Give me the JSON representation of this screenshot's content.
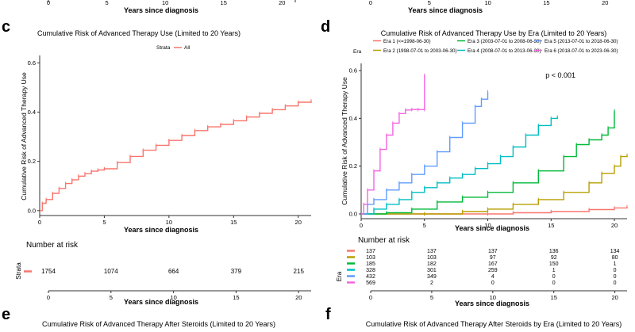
{
  "top_strip": {
    "left": {
      "xlabel": "Years since diagnosis",
      "ticks": [
        "0",
        "5",
        "10",
        "15",
        "20"
      ]
    },
    "right": {
      "xlabel": "Years since diagnosis",
      "ticks": [
        "0",
        "5",
        "10",
        "15",
        "20"
      ]
    }
  },
  "panel_c": {
    "letter": "c",
    "chart_data": {
      "type": "line",
      "title": "Cumulative Risk of Advanced Therapy Use (Limited to 20 Years)",
      "legend_title": "Strata",
      "legend_entries": [
        "All"
      ],
      "xlabel": "Years since diagnosis",
      "ylabel": "Cumulative Risk of Advanced Therapy Use",
      "xlim": [
        0,
        21
      ],
      "ylim": [
        -0.02,
        0.63
      ],
      "xticks": [
        0,
        5,
        10,
        15,
        20
      ],
      "yticks": [
        0.0,
        0.2,
        0.4,
        0.6
      ],
      "ytick_labels": [
        "0.0",
        "0.2",
        "0.4",
        "0.6"
      ],
      "series": [
        {
          "name": "All",
          "color": "#F8766D",
          "points": [
            [
              0,
              0.0
            ],
            [
              0.2,
              0.03
            ],
            [
              0.5,
              0.045
            ],
            [
              1,
              0.07
            ],
            [
              1.5,
              0.09
            ],
            [
              2,
              0.11
            ],
            [
              2.5,
              0.125
            ],
            [
              3,
              0.14
            ],
            [
              3.5,
              0.15
            ],
            [
              4,
              0.16
            ],
            [
              4.5,
              0.165
            ],
            [
              5,
              0.17
            ],
            [
              6,
              0.195
            ],
            [
              7,
              0.22
            ],
            [
              8,
              0.245
            ],
            [
              9,
              0.265
            ],
            [
              10,
              0.285
            ],
            [
              11,
              0.305
            ],
            [
              12,
              0.325
            ],
            [
              13,
              0.34
            ],
            [
              14,
              0.35
            ],
            [
              15,
              0.365
            ],
            [
              16,
              0.38
            ],
            [
              17,
              0.395
            ],
            [
              18,
              0.41
            ],
            [
              19,
              0.425
            ],
            [
              20,
              0.44
            ],
            [
              21,
              0.445
            ]
          ]
        }
      ]
    },
    "risk_table": {
      "title": "Number at risk",
      "ylabel": "Strata",
      "xlabel": "Years since diagnosis",
      "times": [
        0,
        5,
        10,
        15,
        20
      ],
      "tick_labels": [
        "0",
        "5",
        "10",
        "15",
        "20"
      ],
      "rows": [
        {
          "color": "#F8766D",
          "counts": [
            "1754",
            "1074",
            "664",
            "379",
            "215"
          ]
        }
      ]
    }
  },
  "panel_d": {
    "letter": "d",
    "chart_data": {
      "type": "line",
      "title": "Cumulative Risk of Advanced Therapy Use by Era (Limited to 20 Years)",
      "legend_title": "Era",
      "xlabel": "Years since diagnosis",
      "ylabel": "Cumulative Risk of Advanced Therapy Use",
      "annotation": "p < 0.001",
      "xlim": [
        0,
        21
      ],
      "ylim": [
        -0.02,
        0.63
      ],
      "xticks": [
        0,
        5,
        10,
        15,
        20
      ],
      "yticks": [
        0.0,
        0.2,
        0.4,
        0.6
      ],
      "ytick_labels": [
        "0.0",
        "0.2",
        "0.4",
        "0.6"
      ],
      "series": [
        {
          "name": "Era 1 (<=1998-06-30)",
          "color": "#F8766D",
          "points": [
            [
              0,
              0
            ],
            [
              5,
              0
            ],
            [
              10,
              0
            ],
            [
              12,
              0.005
            ],
            [
              15,
              0.01
            ],
            [
              18,
              0.018
            ],
            [
              20,
              0.025
            ],
            [
              21,
              0.03
            ]
          ]
        },
        {
          "name": "Era 2 (1998-07-01 to 2003-06-30)",
          "color": "#B79F00",
          "points": [
            [
              0,
              0
            ],
            [
              5,
              0
            ],
            [
              8,
              0.01
            ],
            [
              10,
              0.02
            ],
            [
              12,
              0.04
            ],
            [
              14,
              0.06
            ],
            [
              16,
              0.09
            ],
            [
              18,
              0.13
            ],
            [
              19,
              0.17
            ],
            [
              20,
              0.2
            ],
            [
              20.5,
              0.24
            ],
            [
              21,
              0.245
            ]
          ]
        },
        {
          "name": "Era 3 (2003-07-01 to 2008-06-30)",
          "color": "#00BA38",
          "points": [
            [
              0,
              0
            ],
            [
              2,
              0.005
            ],
            [
              4,
              0.02
            ],
            [
              6,
              0.05
            ],
            [
              8,
              0.07
            ],
            [
              10,
              0.09
            ],
            [
              12,
              0.13
            ],
            [
              14,
              0.18
            ],
            [
              16,
              0.24
            ],
            [
              17,
              0.29
            ],
            [
              18,
              0.31
            ],
            [
              19,
              0.33
            ],
            [
              19.5,
              0.36
            ],
            [
              20,
              0.43
            ]
          ]
        },
        {
          "name": "Era 4 (2008-07-01 to 2013-06-30)",
          "color": "#00BFC4",
          "points": [
            [
              0,
              0
            ],
            [
              1,
              0.02
            ],
            [
              2,
              0.04
            ],
            [
              3,
              0.06
            ],
            [
              4,
              0.09
            ],
            [
              5,
              0.11
            ],
            [
              6,
              0.13
            ],
            [
              7,
              0.15
            ],
            [
              8,
              0.165
            ],
            [
              9,
              0.19
            ],
            [
              10,
              0.21
            ],
            [
              11,
              0.24
            ],
            [
              12,
              0.28
            ],
            [
              13,
              0.33
            ],
            [
              14,
              0.37
            ],
            [
              15,
              0.4
            ],
            [
              15.5,
              0.405
            ]
          ]
        },
        {
          "name": "Era 5 (2013-07-01 to 2018-06-30)",
          "color": "#619CFF",
          "points": [
            [
              0,
              0
            ],
            [
              0.5,
              0.04
            ],
            [
              1,
              0.06
            ],
            [
              2,
              0.1
            ],
            [
              3,
              0.13
            ],
            [
              4,
              0.165
            ],
            [
              5,
              0.2
            ],
            [
              6,
              0.26
            ],
            [
              7,
              0.32
            ],
            [
              8,
              0.38
            ],
            [
              9,
              0.45
            ],
            [
              9.5,
              0.48
            ],
            [
              10,
              0.51
            ]
          ]
        },
        {
          "name": "Era 6 (2018-07-01 to 2023-06-30)",
          "color": "#F564E3",
          "points": [
            [
              0,
              0
            ],
            [
              0.2,
              0.04
            ],
            [
              0.5,
              0.1
            ],
            [
              1,
              0.18
            ],
            [
              1.5,
              0.27
            ],
            [
              2,
              0.33
            ],
            [
              2.5,
              0.38
            ],
            [
              3,
              0.42
            ],
            [
              3.5,
              0.435
            ],
            [
              4,
              0.437
            ],
            [
              4.5,
              0.437
            ],
            [
              5,
              0.437
            ],
            [
              5,
              0.58
            ]
          ]
        }
      ]
    },
    "risk_table": {
      "title": "Number at risk",
      "ylabel": "Era",
      "xlabel": "Years since diagnosis",
      "times": [
        0,
        5,
        10,
        15,
        20
      ],
      "tick_labels": [
        "0",
        "5",
        "10",
        "15",
        "20"
      ],
      "rows": [
        {
          "color": "#F8766D",
          "counts": [
            "137",
            "137",
            "137",
            "136",
            "134"
          ]
        },
        {
          "color": "#B79F00",
          "counts": [
            "103",
            "103",
            "97",
            "92",
            "80"
          ]
        },
        {
          "color": "#00BA38",
          "counts": [
            "185",
            "182",
            "167",
            "150",
            "1"
          ]
        },
        {
          "color": "#00BFC4",
          "counts": [
            "328",
            "301",
            "259",
            "1",
            "0"
          ]
        },
        {
          "color": "#619CFF",
          "counts": [
            "432",
            "349",
            "4",
            "0",
            "0"
          ]
        },
        {
          "color": "#F564E3",
          "counts": [
            "569",
            "2",
            "0",
            "0",
            "0"
          ]
        }
      ]
    }
  },
  "panel_e": {
    "letter": "e",
    "title": "Cumulative Risk of Advanced Therapy After Steroids (Limited to 20 Years)"
  },
  "panel_f": {
    "letter": "f",
    "title": "Cumulative Risk of Advanced Therapy After Steroids by Era (Limited to 20 Years)"
  }
}
